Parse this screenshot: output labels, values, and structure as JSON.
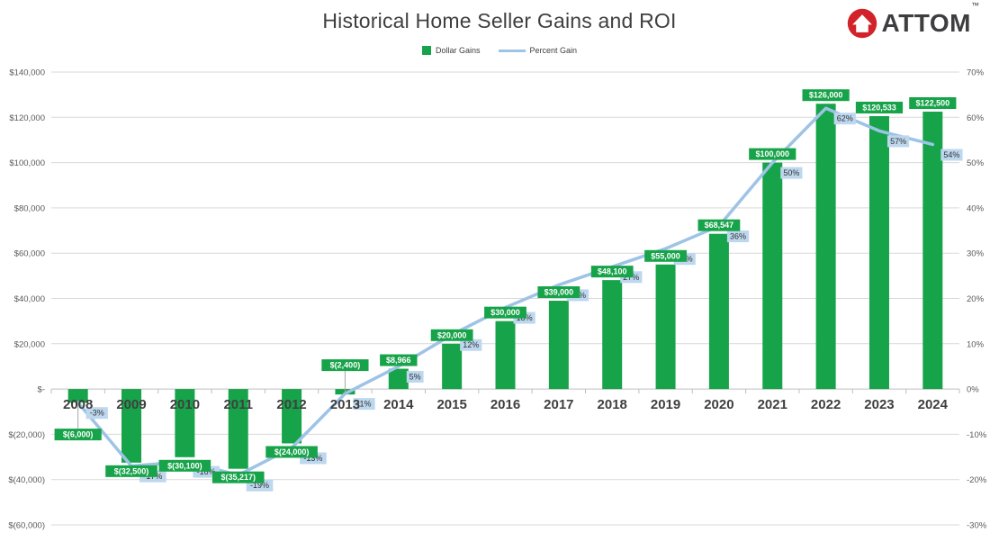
{
  "header": {
    "title": "Historical Home Seller Gains and ROI",
    "logo_text": "ATTOM",
    "logo_tm": "™"
  },
  "legend": [
    {
      "label": "Dollar Gains",
      "type": "bar"
    },
    {
      "label": "Percent Gain",
      "type": "line"
    }
  ],
  "colors": {
    "bar": "#17A349",
    "line": "#9DC3E6",
    "pct_label_bg": "#BDD7EE",
    "pct_label_text": "#333333",
    "bar_label_text": "#FFFFFF",
    "grid": "#D9D9D9",
    "axis": "#BFBFBF",
    "tick_text": "#595959",
    "year_text": "#3F3F3F",
    "leader": "#A6A6A6",
    "logo_red": "#D2232A"
  },
  "chart_data": {
    "type": "bar+line combo",
    "title": "Historical Home Seller Gains and ROI",
    "categories": [
      "2008",
      "2009",
      "2010",
      "2011",
      "2012",
      "2013",
      "2014",
      "2015",
      "2016",
      "2017",
      "2018",
      "2019",
      "2020",
      "2021",
      "2022",
      "2023",
      "2024"
    ],
    "series": [
      {
        "name": "Dollar Gains",
        "type": "bar",
        "axis": "left",
        "values": [
          -6000,
          -32500,
          -30100,
          -35217,
          -24000,
          -2400,
          8966,
          20000,
          30000,
          39000,
          48100,
          55000,
          68547,
          100000,
          126000,
          120533,
          122500
        ],
        "labels": [
          "$(6,000)",
          "$(32,500)",
          "$(30,100)",
          "$(35,217)",
          "$(24,000)",
          "$(2,400)",
          "$8,966",
          "$20,000",
          "$30,000",
          "$39,000",
          "$48,100",
          "$55,000",
          "$68,547",
          "$100,000",
          "$126,000",
          "$120,533",
          "$122,500"
        ]
      },
      {
        "name": "Percent Gain",
        "type": "line",
        "axis": "right",
        "values": [
          -3,
          -17,
          -16,
          -19,
          -13,
          -1,
          5,
          12,
          18,
          23,
          27,
          31,
          36,
          50,
          62,
          57,
          54
        ],
        "labels": [
          "-3%",
          "-17%",
          "-16%",
          "-19%",
          "-13%",
          "-1%",
          "5%",
          "12%",
          "18%",
          "23%",
          "27%",
          "31%",
          "36%",
          "50%",
          "62%",
          "57%",
          "54%"
        ]
      }
    ],
    "left_axis": {
      "min": -60000,
      "max": 140000,
      "step": 20000,
      "ticks": [
        "$140,000",
        "$120,000",
        "$100,000",
        "$80,000",
        "$60,000",
        "$40,000",
        "$20,000",
        "$-",
        "$(20,000)",
        "$(40,000)",
        "$(60,000)"
      ]
    },
    "right_axis": {
      "min": -30,
      "max": 70,
      "step": 10,
      "ticks": [
        "70%",
        "60%",
        "50%",
        "40%",
        "30%",
        "20%",
        "10%",
        "0%",
        "-10%",
        "-20%",
        "-30%"
      ]
    },
    "grid": "horizontal",
    "legend_position": "top-center"
  }
}
